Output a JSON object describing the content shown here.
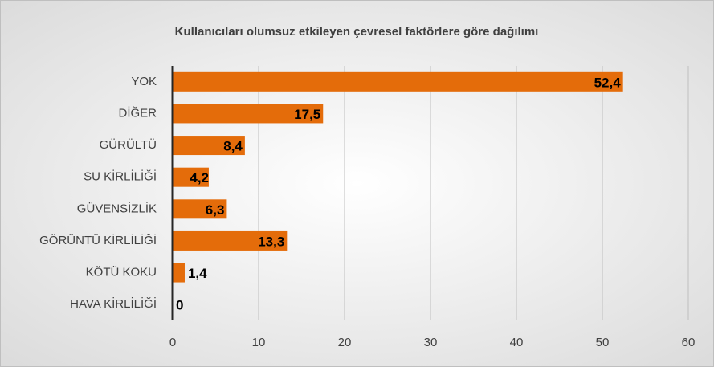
{
  "chart_data": {
    "type": "hbar",
    "title": "Kullanıcıları olumsuz etkileyen çevresel faktörlere göre dağılımı",
    "categories": [
      "YOK",
      "DİĞER",
      "GÜRÜLTÜ",
      "SU KİRLİLİĞİ",
      "GÜVENSİZLİK",
      "GÖRÜNTÜ KİRLİLİĞİ",
      "KÖTÜ KOKU",
      "HAVA KİRLİLİĞİ"
    ],
    "values": [
      52.4,
      17.5,
      8.4,
      4.2,
      6.3,
      13.3,
      1.4,
      0
    ],
    "value_labels": [
      "52,4",
      "17,5",
      "8,4",
      "4,2",
      "6,3",
      "13,3",
      "1,4",
      "0"
    ],
    "color": "#e46c0a",
    "xlim": [
      0,
      60
    ],
    "xticks": [
      0,
      10,
      20,
      30,
      40,
      50,
      60
    ],
    "grid": true
  }
}
